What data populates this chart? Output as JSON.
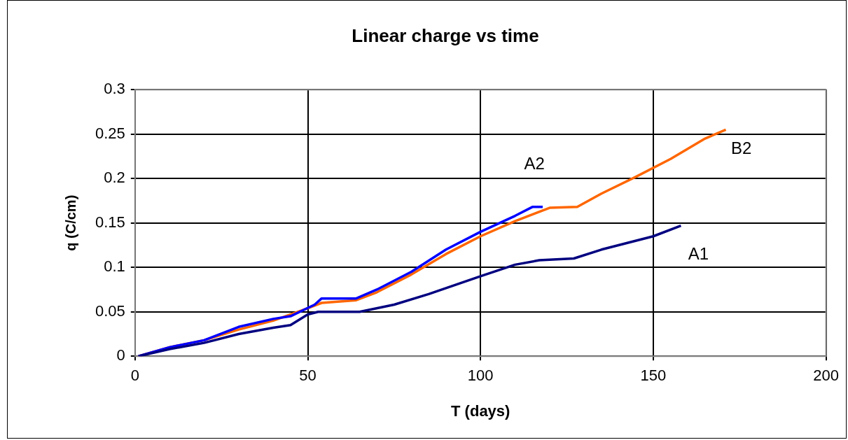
{
  "chart_data": {
    "type": "line",
    "title": "Linear charge vs time",
    "xlabel": "T (days)",
    "ylabel": "q (C/cm)",
    "xlim": [
      0,
      200
    ],
    "xticks": [
      0,
      50,
      100,
      150,
      200
    ],
    "ylim": [
      0,
      0.3
    ],
    "yticks": [
      0,
      0.05,
      0.1,
      0.15,
      0.2,
      0.25,
      0.3
    ],
    "grid": true,
    "legend": false,
    "marker": "none",
    "line_style": "solid",
    "series": [
      {
        "name": "A1",
        "color": "#000080",
        "x": [
          1,
          10,
          20,
          30,
          40,
          45,
          50,
          53,
          65,
          75,
          85,
          100,
          110,
          117,
          127,
          135,
          150,
          158
        ],
        "values": [
          0,
          0.008,
          0.015,
          0.025,
          0.032,
          0.035,
          0.047,
          0.05,
          0.05,
          0.058,
          0.07,
          0.09,
          0.103,
          0.108,
          0.11,
          0.12,
          0.135,
          0.147
        ]
      },
      {
        "name": "A2",
        "color": "#0000ff",
        "x": [
          1,
          10,
          20,
          30,
          40,
          45,
          52,
          54,
          64,
          70,
          80,
          90,
          100,
          110,
          115,
          118
        ],
        "values": [
          0,
          0.01,
          0.018,
          0.033,
          0.042,
          0.045,
          0.058,
          0.065,
          0.065,
          0.075,
          0.095,
          0.12,
          0.14,
          0.158,
          0.168,
          0.168
        ]
      },
      {
        "name": "B2",
        "color": "#ff6600",
        "x": [
          1,
          10,
          20,
          30,
          40,
          50,
          54,
          64,
          70,
          80,
          90,
          100,
          110,
          120,
          128,
          135,
          145,
          155,
          165,
          171
        ],
        "values": [
          0,
          0.01,
          0.018,
          0.03,
          0.04,
          0.054,
          0.06,
          0.063,
          0.072,
          0.092,
          0.115,
          0.135,
          0.152,
          0.167,
          0.168,
          0.183,
          0.202,
          0.222,
          0.245,
          0.255
        ]
      }
    ]
  }
}
